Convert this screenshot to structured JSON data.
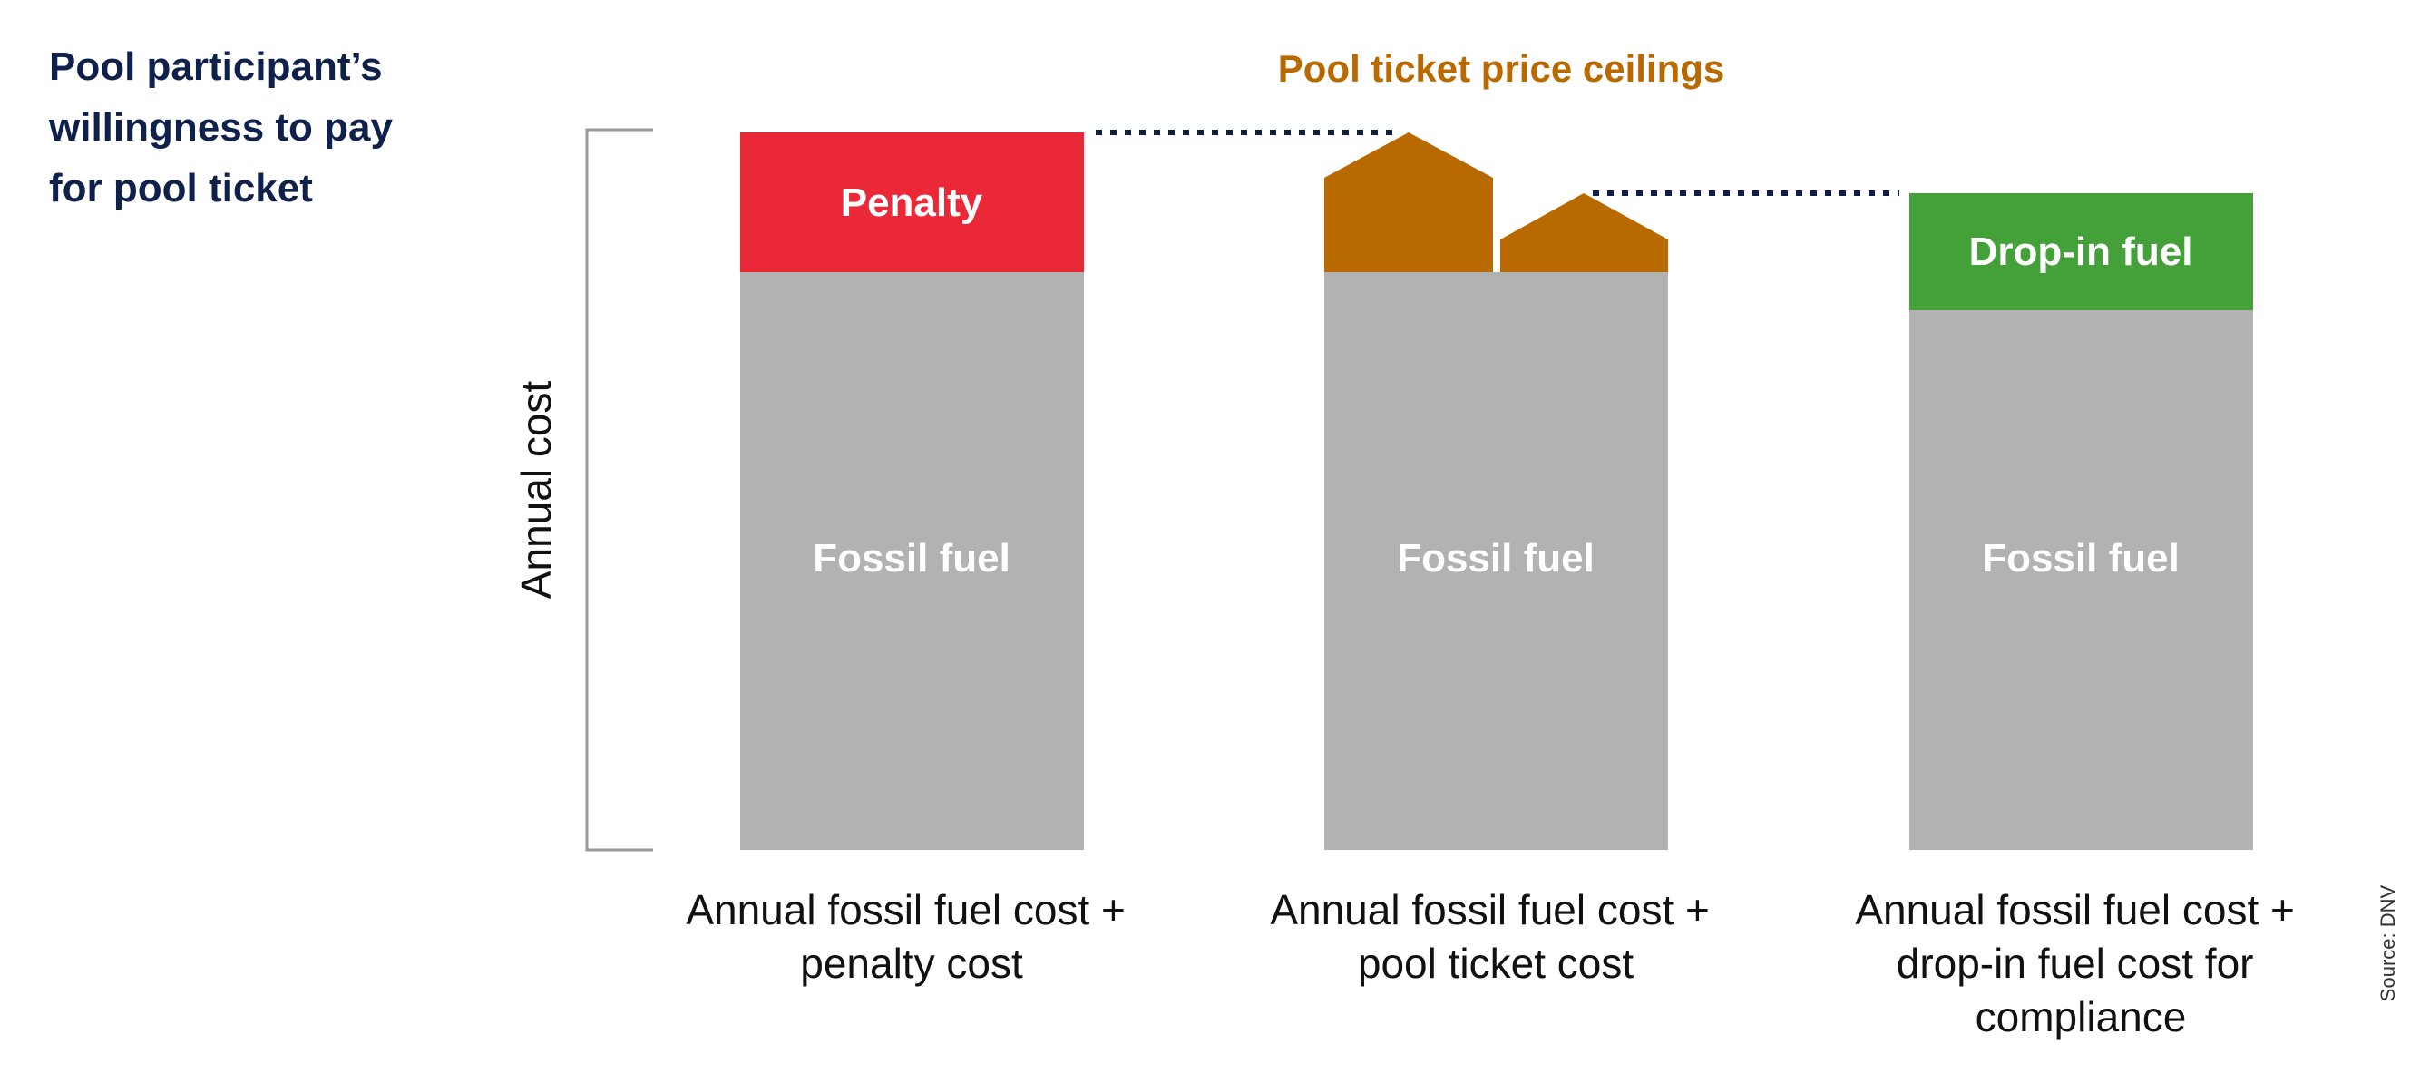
{
  "title_lines": [
    "Pool participant’s",
    "willingness to pay",
    "for pool ticket"
  ],
  "ceiling_label": "Pool ticket price ceilings",
  "axis_label": "Annual cost",
  "source": "Source: DNV",
  "colors": {
    "fossil": "#b2b2b2",
    "penalty": "#ea2837",
    "pool_ticket": "#b86a00",
    "drop_in": "#44a038",
    "title": "#0f204b",
    "dotted_line": "#0f204b"
  },
  "icons": {
    "pool-ticket-segment": "house-shaped polygon (pentagon)"
  },
  "bars": [
    {
      "category_lines": [
        "Annual fossil fuel cost +",
        "penalty cost"
      ],
      "base_label": "Fossil fuel",
      "top_label": "Penalty"
    },
    {
      "category_lines": [
        "Annual fossil fuel cost +",
        "pool ticket cost"
      ],
      "base_label": "Fossil fuel",
      "top_label": ""
    },
    {
      "category_lines": [
        "Annual fossil fuel cost +",
        "drop-in fuel cost for",
        "compliance"
      ],
      "base_label": "Fossil fuel",
      "top_label": "Drop-in fuel"
    }
  ]
}
